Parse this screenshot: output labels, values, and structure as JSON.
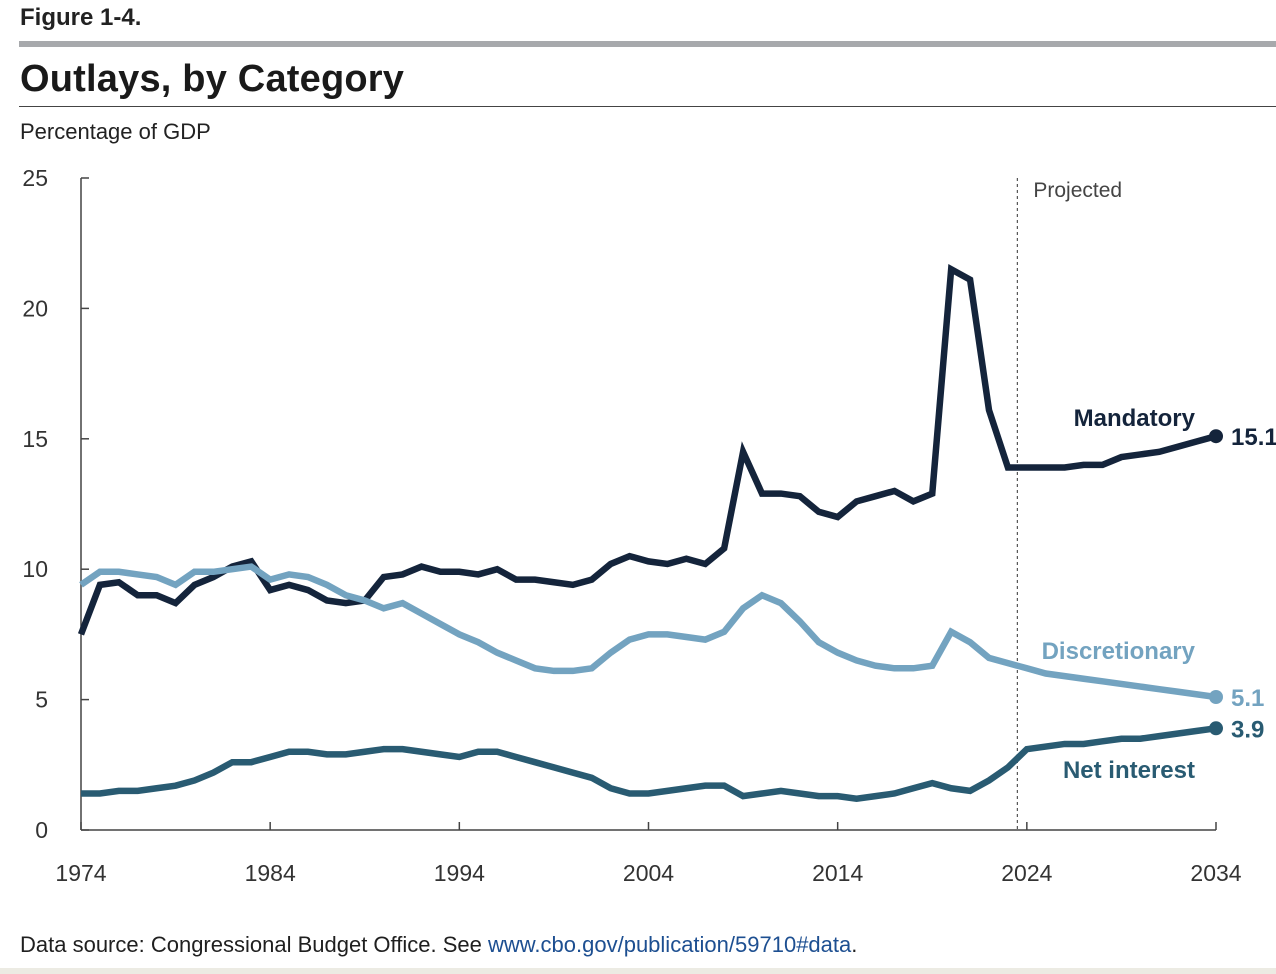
{
  "figure_label": "Figure 1-4.",
  "title": "Outlays, by Category",
  "source": {
    "prefix": "Data source: Congressional Budget Office. See ",
    "link": "www.cbo.gov/publication/59710#data",
    "suffix": "."
  },
  "colors": {
    "mandatory": "#14243b",
    "discretionary": "#73a3c0",
    "net_interest": "#295b72",
    "axis": "#444444",
    "projected_line": "#555555",
    "tick_text": "#333333"
  },
  "chart_data": {
    "type": "line",
    "title": "Outlays, by Category",
    "ylabel": "Percentage of GDP",
    "xlabel": "",
    "xlim": [
      1974,
      2034
    ],
    "ylim": [
      0,
      25
    ],
    "x_ticks": [
      1974,
      1984,
      1994,
      2004,
      2014,
      2024,
      2034
    ],
    "y_ticks": [
      0,
      5,
      10,
      15,
      20,
      25
    ],
    "grid": false,
    "projection": {
      "start_year": 2023.5,
      "label": "Projected"
    },
    "x": [
      1974,
      1975,
      1976,
      1977,
      1978,
      1979,
      1980,
      1981,
      1982,
      1983,
      1984,
      1985,
      1986,
      1987,
      1988,
      1989,
      1990,
      1991,
      1992,
      1993,
      1994,
      1995,
      1996,
      1997,
      1998,
      1999,
      2000,
      2001,
      2002,
      2003,
      2004,
      2005,
      2006,
      2007,
      2008,
      2009,
      2010,
      2011,
      2012,
      2013,
      2014,
      2015,
      2016,
      2017,
      2018,
      2019,
      2020,
      2021,
      2022,
      2023,
      2024,
      2025,
      2026,
      2027,
      2028,
      2029,
      2030,
      2031,
      2032,
      2033,
      2034
    ],
    "series": [
      {
        "name": "Mandatory",
        "key": "mandatory",
        "end_label": "15.1",
        "values": [
          7.5,
          9.4,
          9.5,
          9.0,
          9.0,
          8.7,
          9.4,
          9.7,
          10.1,
          10.3,
          9.2,
          9.4,
          9.2,
          8.8,
          8.7,
          8.8,
          9.7,
          9.8,
          10.1,
          9.9,
          9.9,
          9.8,
          10.0,
          9.6,
          9.6,
          9.5,
          9.4,
          9.6,
          10.2,
          10.5,
          10.3,
          10.2,
          10.4,
          10.2,
          10.8,
          14.5,
          12.9,
          12.9,
          12.8,
          12.2,
          12.0,
          12.6,
          12.8,
          13.0,
          12.6,
          12.9,
          21.5,
          21.1,
          16.1,
          13.9,
          13.9,
          13.9,
          13.9,
          14.0,
          14.0,
          14.3,
          14.4,
          14.5,
          14.7,
          14.9,
          15.1
        ]
      },
      {
        "name": "Discretionary",
        "key": "discretionary",
        "end_label": "5.1",
        "values": [
          9.4,
          9.9,
          9.9,
          9.8,
          9.7,
          9.4,
          9.9,
          9.9,
          10.0,
          10.1,
          9.6,
          9.8,
          9.7,
          9.4,
          9.0,
          8.8,
          8.5,
          8.7,
          8.3,
          7.9,
          7.5,
          7.2,
          6.8,
          6.5,
          6.2,
          6.1,
          6.1,
          6.2,
          6.8,
          7.3,
          7.5,
          7.5,
          7.4,
          7.3,
          7.6,
          8.5,
          9.0,
          8.7,
          8.0,
          7.2,
          6.8,
          6.5,
          6.3,
          6.2,
          6.2,
          6.3,
          7.6,
          7.2,
          6.6,
          6.4,
          6.2,
          6.0,
          5.9,
          5.8,
          5.7,
          5.6,
          5.5,
          5.4,
          5.3,
          5.2,
          5.1
        ]
      },
      {
        "name": "Net interest",
        "key": "net_interest",
        "end_label": "3.9",
        "values": [
          1.4,
          1.4,
          1.5,
          1.5,
          1.6,
          1.7,
          1.9,
          2.2,
          2.6,
          2.6,
          2.8,
          3.0,
          3.0,
          2.9,
          2.9,
          3.0,
          3.1,
          3.1,
          3.0,
          2.9,
          2.8,
          3.0,
          3.0,
          2.8,
          2.6,
          2.4,
          2.2,
          2.0,
          1.6,
          1.4,
          1.4,
          1.5,
          1.6,
          1.7,
          1.7,
          1.3,
          1.4,
          1.5,
          1.4,
          1.3,
          1.3,
          1.2,
          1.3,
          1.4,
          1.6,
          1.8,
          1.6,
          1.5,
          1.9,
          2.4,
          3.1,
          3.2,
          3.3,
          3.3,
          3.4,
          3.5,
          3.5,
          3.6,
          3.7,
          3.8,
          3.9
        ]
      }
    ]
  }
}
